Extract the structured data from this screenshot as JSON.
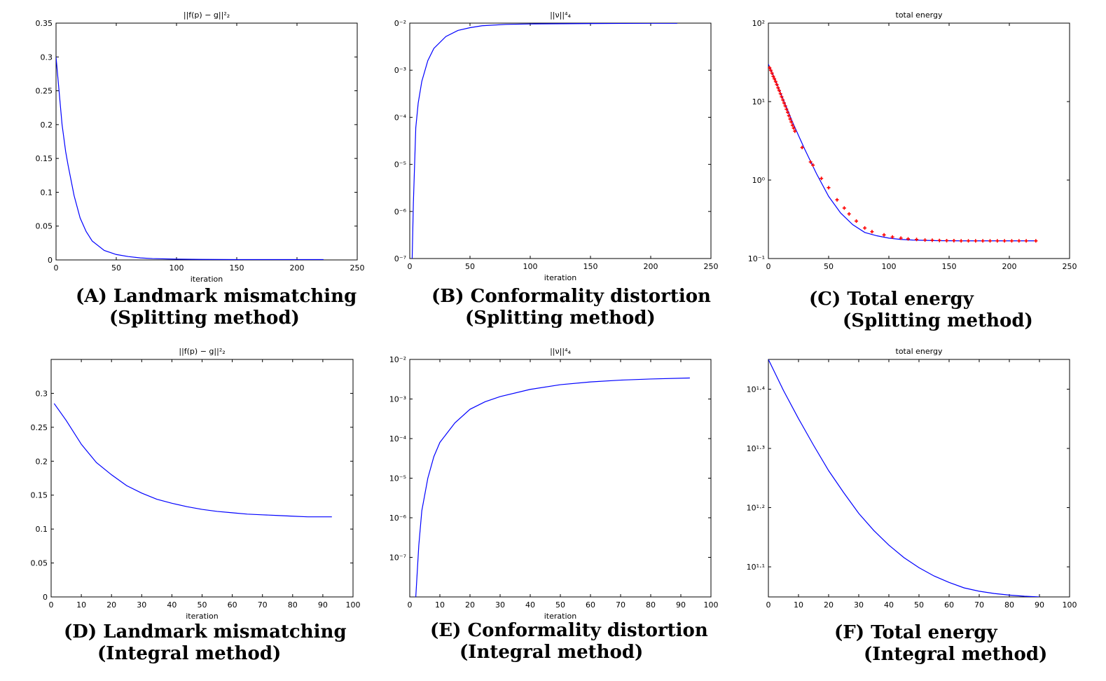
{
  "colors": {
    "line": "#0000ff",
    "marker": "#ff0000",
    "axes": "#000000"
  },
  "captions": [
    {
      "line1": "(A) Landmark mismatching",
      "line2": "(Splitting method)"
    },
    {
      "line1": "(B) Conformality distortion",
      "line2": "(Splitting method)"
    },
    {
      "line1": "(C) Total energy",
      "line2": "(Splitting method)"
    },
    {
      "line1": "(D) Landmark mismatching",
      "line2": "(Integral method)"
    },
    {
      "line1": "(E) Conformality distortion",
      "line2": "(Integral method)"
    },
    {
      "line1": "(F) Total energy",
      "line2": "(Integral method)"
    }
  ],
  "chart_data": [
    {
      "type": "line",
      "title": "||f(p) − g||²₂",
      "xlabel": "iteration",
      "ylabel": "",
      "xlim": [
        0,
        250
      ],
      "ylim": [
        0,
        0.35
      ],
      "yscale": "linear",
      "xticks": [
        0,
        50,
        100,
        150,
        200,
        250
      ],
      "xtick_labels": [
        "0",
        "50",
        "100",
        "150",
        "200",
        "250"
      ],
      "yticks": [
        0,
        0.05,
        0.1,
        0.15,
        0.2,
        0.25,
        0.3,
        0.35
      ],
      "ytick_labels": [
        "0",
        "0.05",
        "0.1",
        "0.15",
        "0.2",
        "0.25",
        "0.3",
        "0.35"
      ],
      "grid": false,
      "series": [
        {
          "x": [
            0,
            2,
            5,
            8,
            10,
            15,
            20,
            25,
            30,
            40,
            50,
            60,
            70,
            80,
            100,
            120,
            150,
            180,
            222
          ],
          "y": [
            0.3,
            0.26,
            0.2,
            0.16,
            0.14,
            0.095,
            0.062,
            0.042,
            0.028,
            0.014,
            0.008,
            0.005,
            0.003,
            0.002,
            0.0012,
            0.0008,
            0.0006,
            0.0005,
            0.0005
          ]
        }
      ]
    },
    {
      "type": "line",
      "title": "||ν||⁴₄",
      "xlabel": "iteration",
      "ylabel": "",
      "xlim": [
        0,
        250
      ],
      "ylim": [
        1e-07,
        0.01
      ],
      "yscale": "log",
      "xticks": [
        0,
        50,
        100,
        150,
        200,
        250
      ],
      "xtick_labels": [
        "0",
        "50",
        "100",
        "150",
        "200",
        "250"
      ],
      "yticks": [
        1e-07,
        1e-06,
        1e-05,
        0.0001,
        0.001,
        0.01
      ],
      "ytick_labels": [
        "0⁻⁷",
        "0⁻⁶",
        "0⁻⁵",
        "0⁻⁴",
        "0⁻³",
        "0⁻²"
      ],
      "grid": false,
      "series": [
        {
          "x": [
            2,
            3,
            5,
            7,
            10,
            15,
            20,
            30,
            40,
            50,
            60,
            80,
            100,
            150,
            200,
            222
          ],
          "y": [
            1e-07,
            1.5e-06,
            6e-05,
            0.0002,
            0.00058,
            0.0016,
            0.0029,
            0.0052,
            0.007,
            0.008,
            0.0088,
            0.0094,
            0.0096,
            0.0098,
            0.0099,
            0.0099
          ]
        }
      ]
    },
    {
      "type": "line",
      "title": "total energy",
      "xlabel": "",
      "ylabel": "",
      "xlim": [
        0,
        250
      ],
      "ylim": [
        0.1,
        100
      ],
      "yscale": "log",
      "xticks": [
        0,
        50,
        100,
        150,
        200,
        250
      ],
      "xtick_labels": [
        "0",
        "50",
        "100",
        "150",
        "200",
        "250"
      ],
      "yticks": [
        0.1,
        1,
        10,
        100
      ],
      "ytick_labels": [
        "10⁻¹",
        "10⁰",
        "10¹",
        "10²"
      ],
      "grid": false,
      "series": [
        {
          "x": [
            0,
            5,
            10,
            15,
            20,
            25,
            30,
            40,
            50,
            60,
            70,
            80,
            90,
            100,
            110,
            120,
            140,
            160,
            180,
            200,
            222
          ],
          "y": [
            30,
            20,
            13,
            8.5,
            5.5,
            3.7,
            2.5,
            1.2,
            0.62,
            0.38,
            0.27,
            0.215,
            0.195,
            0.182,
            0.175,
            0.172,
            0.169,
            0.168,
            0.168,
            0.168,
            0.168
          ]
        }
      ],
      "markers": {
        "x": [
          1,
          2,
          3,
          4,
          5,
          6,
          7,
          8,
          9,
          10,
          11,
          12,
          13,
          14,
          15,
          16,
          17,
          18,
          19,
          20,
          21,
          22,
          28,
          35,
          37,
          44,
          50,
          57,
          63,
          67,
          73,
          80,
          86,
          96,
          103,
          110,
          116,
          123,
          130,
          136,
          142,
          148,
          154,
          160,
          166,
          172,
          178,
          184,
          190,
          196,
          202,
          208,
          214,
          222
        ],
        "y": [
          27,
          25,
          23,
          21,
          19.5,
          18,
          16.5,
          15,
          13.8,
          12.6,
          11.5,
          10.5,
          9.6,
          8.8,
          8,
          7.3,
          6.6,
          6,
          5.5,
          5,
          4.6,
          4.2,
          2.6,
          1.7,
          1.55,
          1.05,
          0.8,
          0.56,
          0.44,
          0.37,
          0.3,
          0.245,
          0.22,
          0.2,
          0.188,
          0.182,
          0.178,
          0.175,
          0.172,
          0.171,
          0.17,
          0.169,
          0.169,
          0.168,
          0.168,
          0.168,
          0.168,
          0.168,
          0.168,
          0.168,
          0.168,
          0.168,
          0.168,
          0.168
        ]
      }
    },
    {
      "type": "line",
      "title": "||f(p) − g||²₂",
      "xlabel": "iteration",
      "ylabel": "",
      "xlim": [
        0,
        100
      ],
      "ylim": [
        0,
        0.35
      ],
      "yscale": "linear",
      "xticks": [
        0,
        10,
        20,
        30,
        40,
        50,
        60,
        70,
        80,
        90,
        100
      ],
      "xtick_labels": [
        "0",
        "10",
        "20",
        "30",
        "40",
        "50",
        "60",
        "70",
        "80",
        "90",
        "100"
      ],
      "yticks": [
        0,
        0.05,
        0.1,
        0.15,
        0.2,
        0.25,
        0.3
      ],
      "ytick_labels": [
        "0",
        "0.05",
        "0.1",
        "0.15",
        "0.2",
        "0.25",
        "0.3"
      ],
      "grid": false,
      "series": [
        {
          "x": [
            1,
            5,
            10,
            15,
            20,
            25,
            30,
            35,
            40,
            45,
            50,
            55,
            60,
            65,
            70,
            75,
            80,
            85,
            93
          ],
          "y": [
            0.285,
            0.26,
            0.225,
            0.198,
            0.18,
            0.164,
            0.153,
            0.144,
            0.138,
            0.133,
            0.129,
            0.126,
            0.124,
            0.122,
            0.121,
            0.12,
            0.119,
            0.118,
            0.118
          ]
        }
      ]
    },
    {
      "type": "line",
      "title": "||ν||⁴₄",
      "xlabel": "iteration",
      "ylabel": "",
      "xlim": [
        0,
        100
      ],
      "ylim": [
        1e-08,
        0.01
      ],
      "yscale": "log",
      "xticks": [
        0,
        10,
        20,
        30,
        40,
        50,
        60,
        70,
        80,
        90,
        100
      ],
      "xtick_labels": [
        "0",
        "10",
        "20",
        "30",
        "40",
        "50",
        "60",
        "70",
        "80",
        "90",
        "100"
      ],
      "yticks": [
        1e-07,
        1e-06,
        1e-05,
        0.0001,
        0.001,
        0.01
      ],
      "ytick_labels": [
        "10⁻⁷",
        "10⁻⁶",
        "10⁻⁵",
        "10⁻⁴",
        "10⁻³",
        "10⁻²"
      ],
      "grid": false,
      "series": [
        {
          "x": [
            2,
            3,
            4,
            6,
            8,
            10,
            15,
            20,
            25,
            30,
            40,
            50,
            60,
            70,
            80,
            93
          ],
          "y": [
            1e-08,
            2e-07,
            1.5e-06,
            1e-05,
            3.5e-05,
            8e-05,
            0.00025,
            0.00055,
            0.00085,
            0.00115,
            0.00175,
            0.0023,
            0.0027,
            0.003,
            0.0032,
            0.0034
          ]
        }
      ]
    },
    {
      "type": "line",
      "title": "total energy",
      "xlabel": "",
      "ylabel": "",
      "xlim": [
        0,
        100
      ],
      "ylim": [
        11.2,
        28.2
      ],
      "yscale": "log",
      "xticks": [
        0,
        10,
        20,
        30,
        40,
        50,
        60,
        70,
        80,
        90,
        100
      ],
      "xtick_labels": [
        "0",
        "10",
        "20",
        "30",
        "40",
        "50",
        "60",
        "70",
        "80",
        "90",
        "100"
      ],
      "yticks": [
        12.59,
        15.85,
        19.95,
        25.12
      ],
      "ytick_labels": [
        "10¹·¹",
        "10¹·²",
        "10¹·³",
        "10¹·⁴"
      ],
      "grid": false,
      "series": [
        {
          "x": [
            0,
            5,
            10,
            15,
            20,
            25,
            30,
            35,
            40,
            45,
            50,
            55,
            60,
            65,
            70,
            75,
            80,
            85,
            90
          ],
          "y": [
            28.2,
            25,
            22.4,
            20.2,
            18.3,
            16.8,
            15.5,
            14.5,
            13.7,
            13.05,
            12.55,
            12.15,
            11.85,
            11.6,
            11.45,
            11.35,
            11.28,
            11.23,
            11.2
          ]
        }
      ]
    }
  ]
}
